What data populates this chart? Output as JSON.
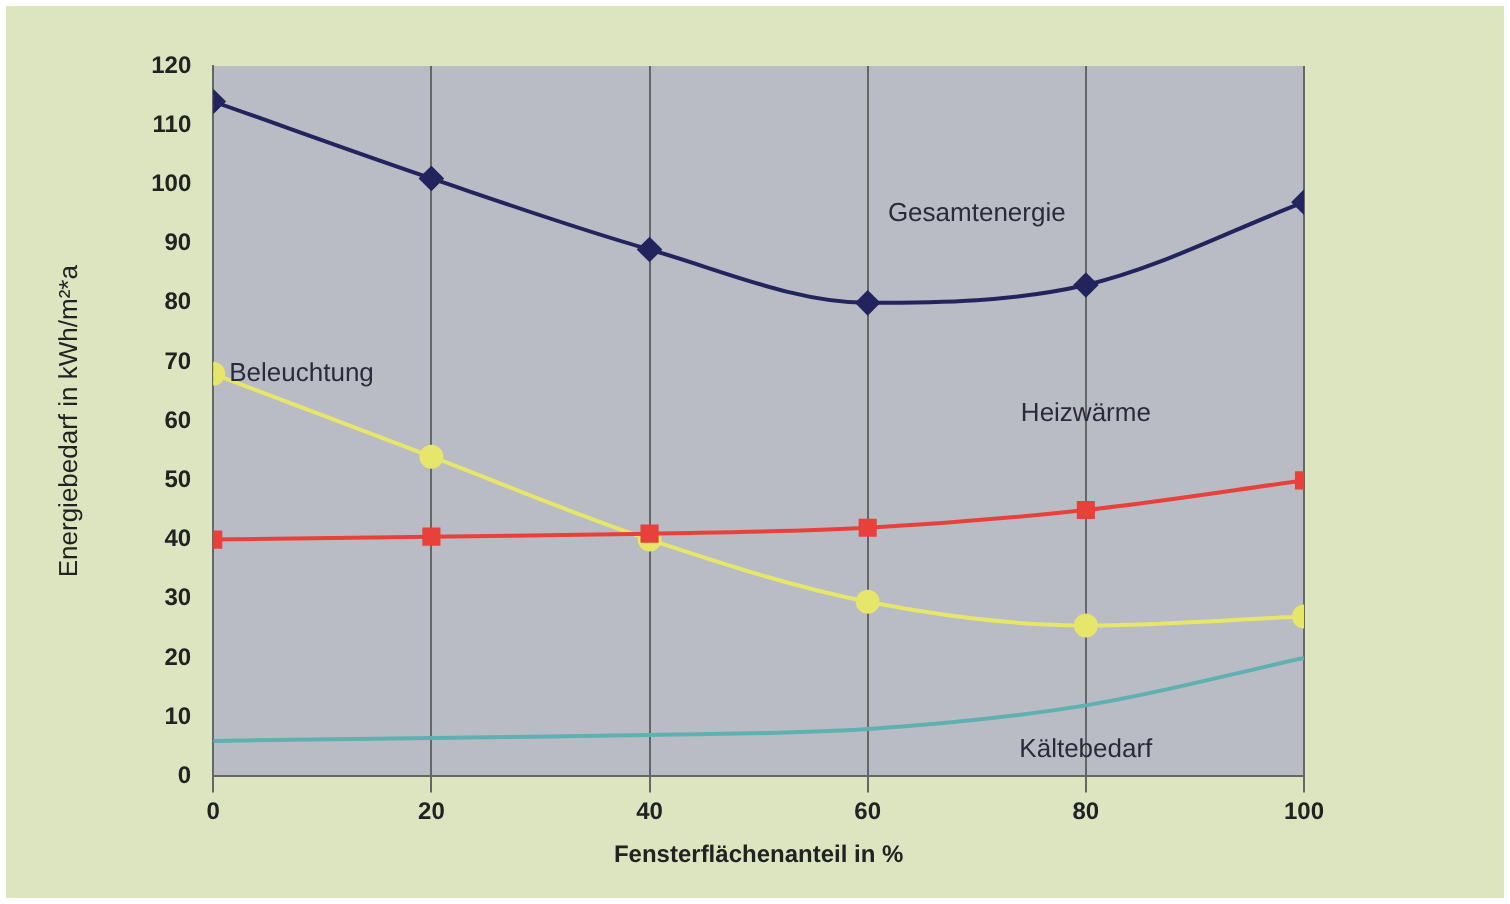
{
  "chart_data": {
    "type": "line",
    "xlabel": "Fensterflächenanteil in %",
    "ylabel": "Energiebedarf in kWh/m²*a",
    "x": [
      0,
      20,
      40,
      60,
      80,
      100
    ],
    "series": [
      {
        "name": "Gesamtenergie",
        "color": "#23235e",
        "marker": "diamond",
        "values": [
          114,
          101,
          89,
          80,
          83,
          97
        ]
      },
      {
        "name": "Heizwärme",
        "color": "#e8403a",
        "marker": "square",
        "values": [
          40,
          40.5,
          41,
          42,
          45,
          50
        ]
      },
      {
        "name": "Beleuchtung",
        "color": "#e6e66a",
        "marker": "circle",
        "values": [
          68,
          54,
          40,
          29.5,
          25.5,
          27
        ]
      },
      {
        "name": "Kältebedarf",
        "color": "#5fb0b0",
        "marker": "none",
        "values": [
          6,
          6.5,
          7,
          8,
          12,
          20
        ]
      }
    ],
    "xlim": [
      0,
      100
    ],
    "xticks": [
      0,
      20,
      40,
      60,
      80,
      100
    ],
    "ylim": [
      0,
      120
    ],
    "yticks": [
      0,
      10,
      20,
      30,
      40,
      50,
      60,
      70,
      80,
      90,
      100,
      110,
      120
    ],
    "grid": "x",
    "legend": false
  }
}
